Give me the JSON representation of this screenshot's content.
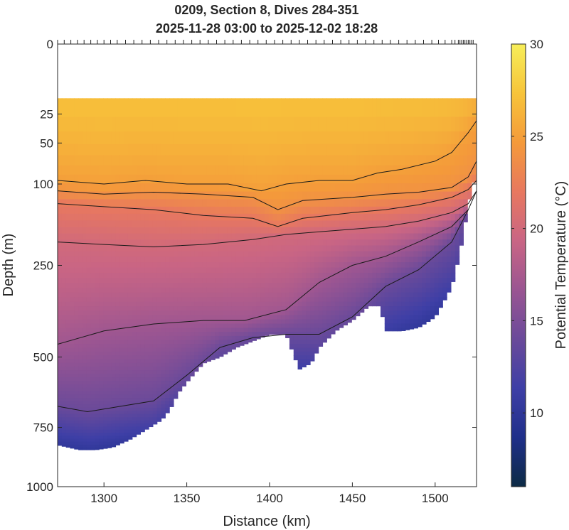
{
  "chart_data": {
    "type": "heatmap",
    "title": "0209, Section 8, Dives 284-351",
    "subtitle": "2025-11-28 03:00 to 2025-12-02 18:28",
    "xlabel": "Distance (km)",
    "ylabel": "Depth (m)",
    "xlim": [
      1272,
      1525
    ],
    "ylim": [
      0,
      1000
    ],
    "yscale": "sqrt",
    "x_ticks": [
      1300,
      1350,
      1400,
      1450,
      1500
    ],
    "y_ticks": [
      0,
      25,
      50,
      100,
      250,
      500,
      750,
      1000
    ],
    "colorbar": {
      "label": "Potential Temperature (°C)",
      "range": [
        6,
        30
      ],
      "ticks": [
        10,
        15,
        20,
        25,
        30
      ],
      "colors": [
        "#0d2b45",
        "#1f2f8a",
        "#3e3fa6",
        "#6a4a9a",
        "#9a5592",
        "#c96584",
        "#e8785f",
        "#f49a3a",
        "#f7c43a",
        "#f7ee59"
      ]
    },
    "dive_positions_km": [
      1272,
      1276,
      1280,
      1284,
      1288,
      1292,
      1296,
      1300,
      1304,
      1308,
      1313,
      1318,
      1323,
      1328,
      1333,
      1338,
      1343,
      1348,
      1353,
      1358,
      1363,
      1368,
      1373,
      1378,
      1383,
      1388,
      1393,
      1398,
      1403,
      1408,
      1413,
      1418,
      1423,
      1428,
      1433,
      1438,
      1443,
      1448,
      1453,
      1458,
      1463,
      1468,
      1473,
      1478,
      1483,
      1488,
      1493,
      1498,
      1502,
      1506,
      1510,
      1512,
      1514,
      1515,
      1516,
      1517,
      1518,
      1519,
      1520,
      1521,
      1522,
      1523
    ],
    "surface_gap_depth_m": 15,
    "bottom_profile": {
      "x": [
        1272,
        1285,
        1295,
        1305,
        1315,
        1325,
        1335,
        1340,
        1345,
        1352,
        1360,
        1370,
        1380,
        1390,
        1400,
        1410,
        1418,
        1425,
        1430,
        1440,
        1450,
        1460,
        1467,
        1470,
        1480,
        1490,
        1500,
        1510,
        1515,
        1520,
        1525
      ],
      "depth": [
        820,
        840,
        840,
        830,
        800,
        760,
        720,
        680,
        620,
        570,
        520,
        500,
        470,
        450,
        430,
        430,
        540,
        520,
        470,
        420,
        390,
        350,
        350,
        420,
        420,
        410,
        380,
        300,
        220,
        130,
        80
      ]
    },
    "isotherms": [
      {
        "level": 25,
        "x": [
          1272,
          1300,
          1325,
          1350,
          1375,
          1395,
          1410,
          1430,
          1450,
          1465,
          1480,
          1500,
          1510,
          1520,
          1525
        ],
        "depth": [
          95,
          100,
          95,
          100,
          100,
          110,
          100,
          95,
          95,
          85,
          80,
          70,
          60,
          40,
          30
        ]
      },
      {
        "level": 24,
        "x": [
          1272,
          1300,
          1330,
          1360,
          1390,
          1405,
          1420,
          1450,
          1470,
          1490,
          1510,
          1520,
          1525
        ],
        "depth": [
          110,
          115,
          112,
          115,
          120,
          140,
          125,
          120,
          115,
          112,
          105,
          90,
          70
        ]
      },
      {
        "level": 22,
        "x": [
          1272,
          1300,
          1330,
          1360,
          1390,
          1405,
          1420,
          1450,
          1470,
          1490,
          1510,
          1520,
          1525
        ],
        "depth": [
          130,
          135,
          140,
          150,
          155,
          170,
          155,
          145,
          140,
          132,
          120,
          108,
          95
        ]
      },
      {
        "level": 20,
        "x": [
          1272,
          1300,
          1330,
          1360,
          1390,
          1410,
          1430,
          1450,
          1470,
          1490,
          1510,
          1520,
          1525
        ],
        "depth": [
          200,
          205,
          210,
          205,
          195,
          185,
          180,
          175,
          170,
          160,
          145,
          130,
          110
        ]
      },
      {
        "level": 17,
        "x": [
          1272,
          1300,
          1330,
          1360,
          1385,
          1410,
          1430,
          1450,
          1470,
          1490,
          1510,
          1520,
          1525
        ],
        "depth": [
          460,
          420,
          400,
          390,
          390,
          360,
          290,
          250,
          230,
          200,
          170,
          140,
          110
        ]
      },
      {
        "level": 14,
        "x": [
          1272,
          1290,
          1310,
          1330,
          1350,
          1370,
          1390,
          1410,
          1430,
          1450,
          1470,
          1490,
          1510,
          1520
        ],
        "depth": [
          670,
          690,
          670,
          650,
          560,
          470,
          440,
          430,
          430,
          380,
          300,
          260,
          200,
          140
        ]
      }
    ]
  }
}
